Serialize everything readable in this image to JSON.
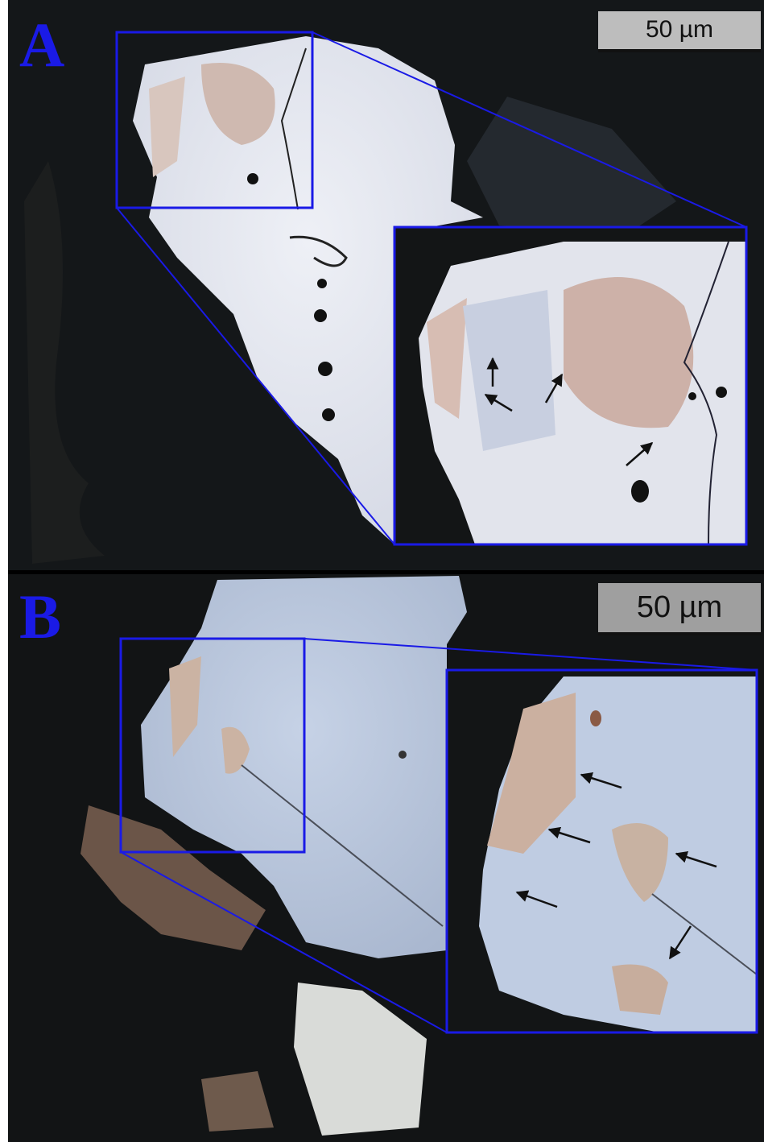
{
  "panels": [
    {
      "label": "A",
      "scale_bar": "50 µm"
    },
    {
      "label": "B",
      "scale_bar": "50 µm"
    }
  ]
}
